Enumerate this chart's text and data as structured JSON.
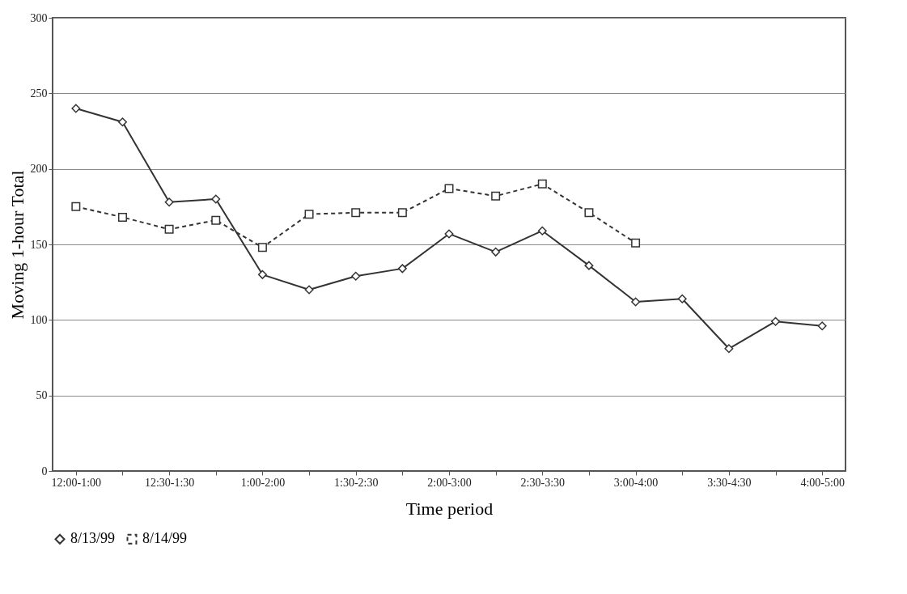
{
  "chart_data": {
    "type": "line",
    "xlabel": "Time period",
    "ylabel": "Moving 1-hour Total",
    "categories": [
      "12:00-1:00",
      null,
      "12:30-1:30",
      null,
      "1:00-2:00",
      null,
      "1:30-2:30",
      null,
      "2:00-3:00",
      null,
      "2:30-3:30",
      null,
      "3:00-4:00",
      null,
      "3:30-4:30",
      null,
      "4:00-5:00"
    ],
    "ylim": [
      0,
      300
    ],
    "yticks": [
      0,
      50,
      100,
      150,
      200,
      250,
      300
    ],
    "grid": "y",
    "legend": "bottom",
    "series": [
      {
        "name": "8/13/99",
        "color": "#333333",
        "marker": "diamond",
        "line_style": "solid",
        "values": [
          240,
          231,
          178,
          180,
          130,
          120,
          129,
          134,
          157,
          145,
          159,
          136,
          112,
          114,
          81,
          99,
          96
        ]
      },
      {
        "name": "8/14/99",
        "color": "#333333",
        "marker": "square",
        "line_style": "dashed",
        "values": [
          175,
          168,
          160,
          166,
          148,
          170,
          171,
          171,
          187,
          182,
          190,
          171,
          151,
          null,
          null,
          null,
          null
        ]
      }
    ]
  }
}
